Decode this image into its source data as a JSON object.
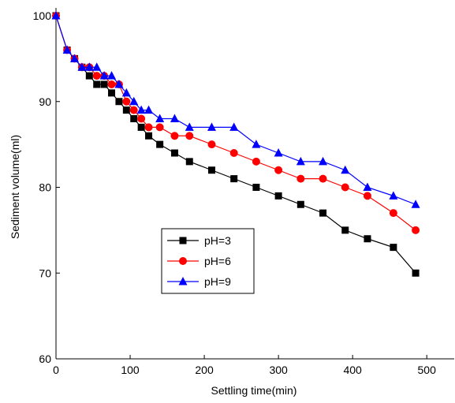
{
  "chart_data": {
    "type": "line",
    "xlabel": "Settling time(min)",
    "ylabel": "Sediment volume(ml)",
    "x": [
      0,
      15,
      25,
      35,
      45,
      55,
      65,
      75,
      85,
      95,
      105,
      115,
      125,
      140,
      160,
      180,
      210,
      240,
      270,
      300,
      330,
      360,
      390,
      420,
      455,
      485
    ],
    "series": [
      {
        "name": "pH=3",
        "color": "#000000",
        "marker": "square",
        "values": [
          100,
          96,
          95,
          94,
          93,
          92,
          92,
          91,
          90,
          89,
          88,
          87,
          86,
          85,
          84,
          83,
          82,
          81,
          80,
          79,
          78,
          77,
          75,
          74,
          73,
          70
        ]
      },
      {
        "name": "pH=6",
        "color": "#ff0000",
        "marker": "circle",
        "values": [
          100,
          96,
          95,
          94,
          94,
          93,
          93,
          92,
          92,
          90,
          89,
          88,
          87,
          87,
          86,
          86,
          85,
          84,
          83,
          82,
          81,
          81,
          80,
          79,
          77,
          75
        ]
      },
      {
        "name": "pH=9",
        "color": "#0000ff",
        "marker": "triangle",
        "values": [
          100,
          96,
          95,
          94,
          94,
          94,
          93,
          93,
          92,
          91,
          90,
          89,
          89,
          88,
          88,
          87,
          87,
          87,
          85,
          84,
          83,
          83,
          82,
          80,
          79,
          78
        ]
      }
    ],
    "xlim": [
      0,
      537
    ],
    "xticks": [
      0,
      100,
      200,
      300,
      400,
      500
    ],
    "ylim": [
      60,
      100
    ],
    "yticks": [
      60,
      70,
      80,
      90,
      100
    ]
  }
}
